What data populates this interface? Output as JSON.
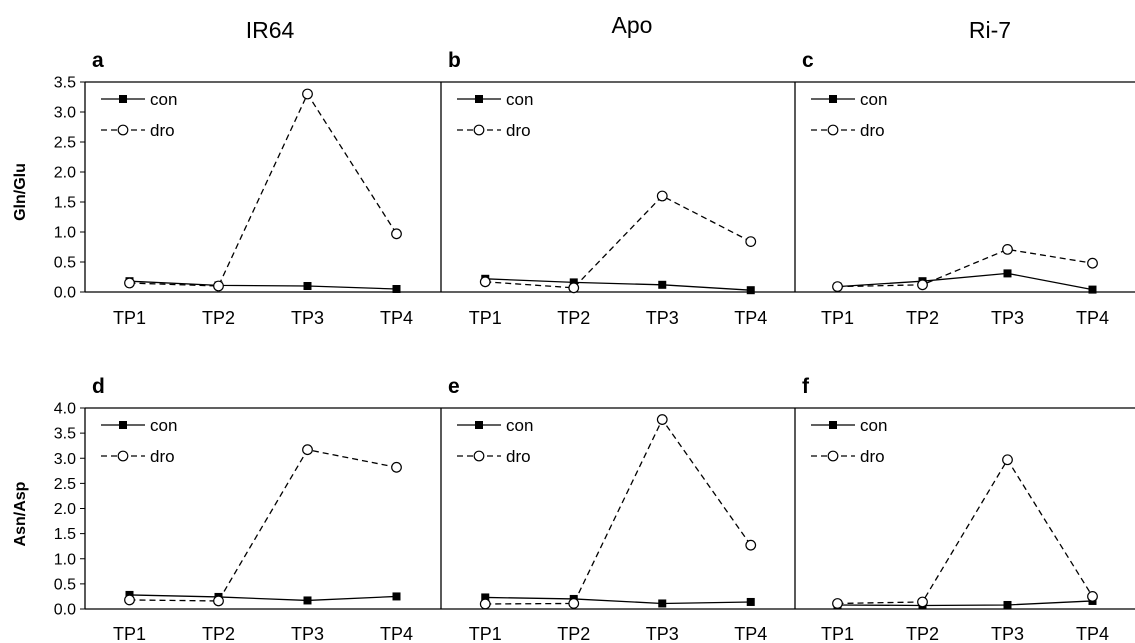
{
  "column_titles": [
    "IR64",
    "Apo",
    "Ri-7"
  ],
  "row_ylabels": [
    "Gln/Glu",
    "Asn/Asp"
  ],
  "chart_data": [
    {
      "panel": "a",
      "row": 0,
      "col": 0,
      "type": "line",
      "categories": [
        "TP1",
        "TP2",
        "TP3",
        "TP4"
      ],
      "ylabel": "Gln/Glu",
      "ylim": [
        0,
        3.5
      ],
      "yticks": [
        "0.0",
        "0.5",
        "1.0",
        "1.5",
        "2.0",
        "2.5",
        "3.0",
        "3.5"
      ],
      "legend": "top-left",
      "series": [
        {
          "name": "con",
          "values": [
            0.18,
            0.11,
            0.1,
            0.05
          ],
          "style": "solid",
          "marker": "square"
        },
        {
          "name": "dro",
          "values": [
            0.15,
            0.1,
            3.3,
            0.97
          ],
          "style": "dashed",
          "marker": "circle"
        }
      ]
    },
    {
      "panel": "b",
      "row": 0,
      "col": 1,
      "type": "line",
      "categories": [
        "TP1",
        "TP2",
        "TP3",
        "TP4"
      ],
      "ylim": [
        0,
        3.5
      ],
      "legend": "top-left",
      "series": [
        {
          "name": "con",
          "values": [
            0.22,
            0.16,
            0.12,
            0.03
          ],
          "style": "solid",
          "marker": "square"
        },
        {
          "name": "dro",
          "values": [
            0.17,
            0.07,
            1.6,
            0.84
          ],
          "style": "dashed",
          "marker": "circle"
        }
      ]
    },
    {
      "panel": "c",
      "row": 0,
      "col": 2,
      "type": "line",
      "categories": [
        "TP1",
        "TP2",
        "TP3",
        "TP4"
      ],
      "ylim": [
        0,
        3.5
      ],
      "legend": "top-left",
      "series": [
        {
          "name": "con",
          "values": [
            0.09,
            0.18,
            0.31,
            0.04
          ],
          "style": "solid",
          "marker": "square"
        },
        {
          "name": "dro",
          "values": [
            0.09,
            0.12,
            0.71,
            0.48
          ],
          "style": "dashed",
          "marker": "circle"
        }
      ]
    },
    {
      "panel": "d",
      "row": 1,
      "col": 0,
      "type": "line",
      "categories": [
        "TP1",
        "TP2",
        "TP3",
        "TP4"
      ],
      "ylabel": "Asn/Asp",
      "ylim": [
        0,
        4.0
      ],
      "yticks": [
        "0.0",
        "0.5",
        "1.0",
        "1.5",
        "2.0",
        "2.5",
        "3.0",
        "3.5",
        "4.0"
      ],
      "legend": "top-left",
      "series": [
        {
          "name": "con",
          "values": [
            0.28,
            0.24,
            0.17,
            0.25
          ],
          "style": "solid",
          "marker": "square"
        },
        {
          "name": "dro",
          "values": [
            0.18,
            0.16,
            3.17,
            2.82
          ],
          "style": "dashed",
          "marker": "circle"
        }
      ]
    },
    {
      "panel": "e",
      "row": 1,
      "col": 1,
      "type": "line",
      "categories": [
        "TP1",
        "TP2",
        "TP3",
        "TP4"
      ],
      "ylim": [
        0,
        4.0
      ],
      "legend": "top-left",
      "series": [
        {
          "name": "con",
          "values": [
            0.23,
            0.2,
            0.11,
            0.14
          ],
          "style": "solid",
          "marker": "square"
        },
        {
          "name": "dro",
          "values": [
            0.1,
            0.11,
            3.77,
            1.27
          ],
          "style": "dashed",
          "marker": "circle"
        }
      ]
    },
    {
      "panel": "f",
      "row": 1,
      "col": 2,
      "type": "line",
      "categories": [
        "TP1",
        "TP2",
        "TP3",
        "TP4"
      ],
      "ylim": [
        0,
        4.0
      ],
      "legend": "top-left",
      "series": [
        {
          "name": "con",
          "values": [
            0.08,
            0.07,
            0.08,
            0.16
          ],
          "style": "solid",
          "marker": "square"
        },
        {
          "name": "dro",
          "values": [
            0.11,
            0.14,
            2.97,
            0.25
          ],
          "style": "dashed",
          "marker": "circle"
        }
      ]
    }
  ]
}
